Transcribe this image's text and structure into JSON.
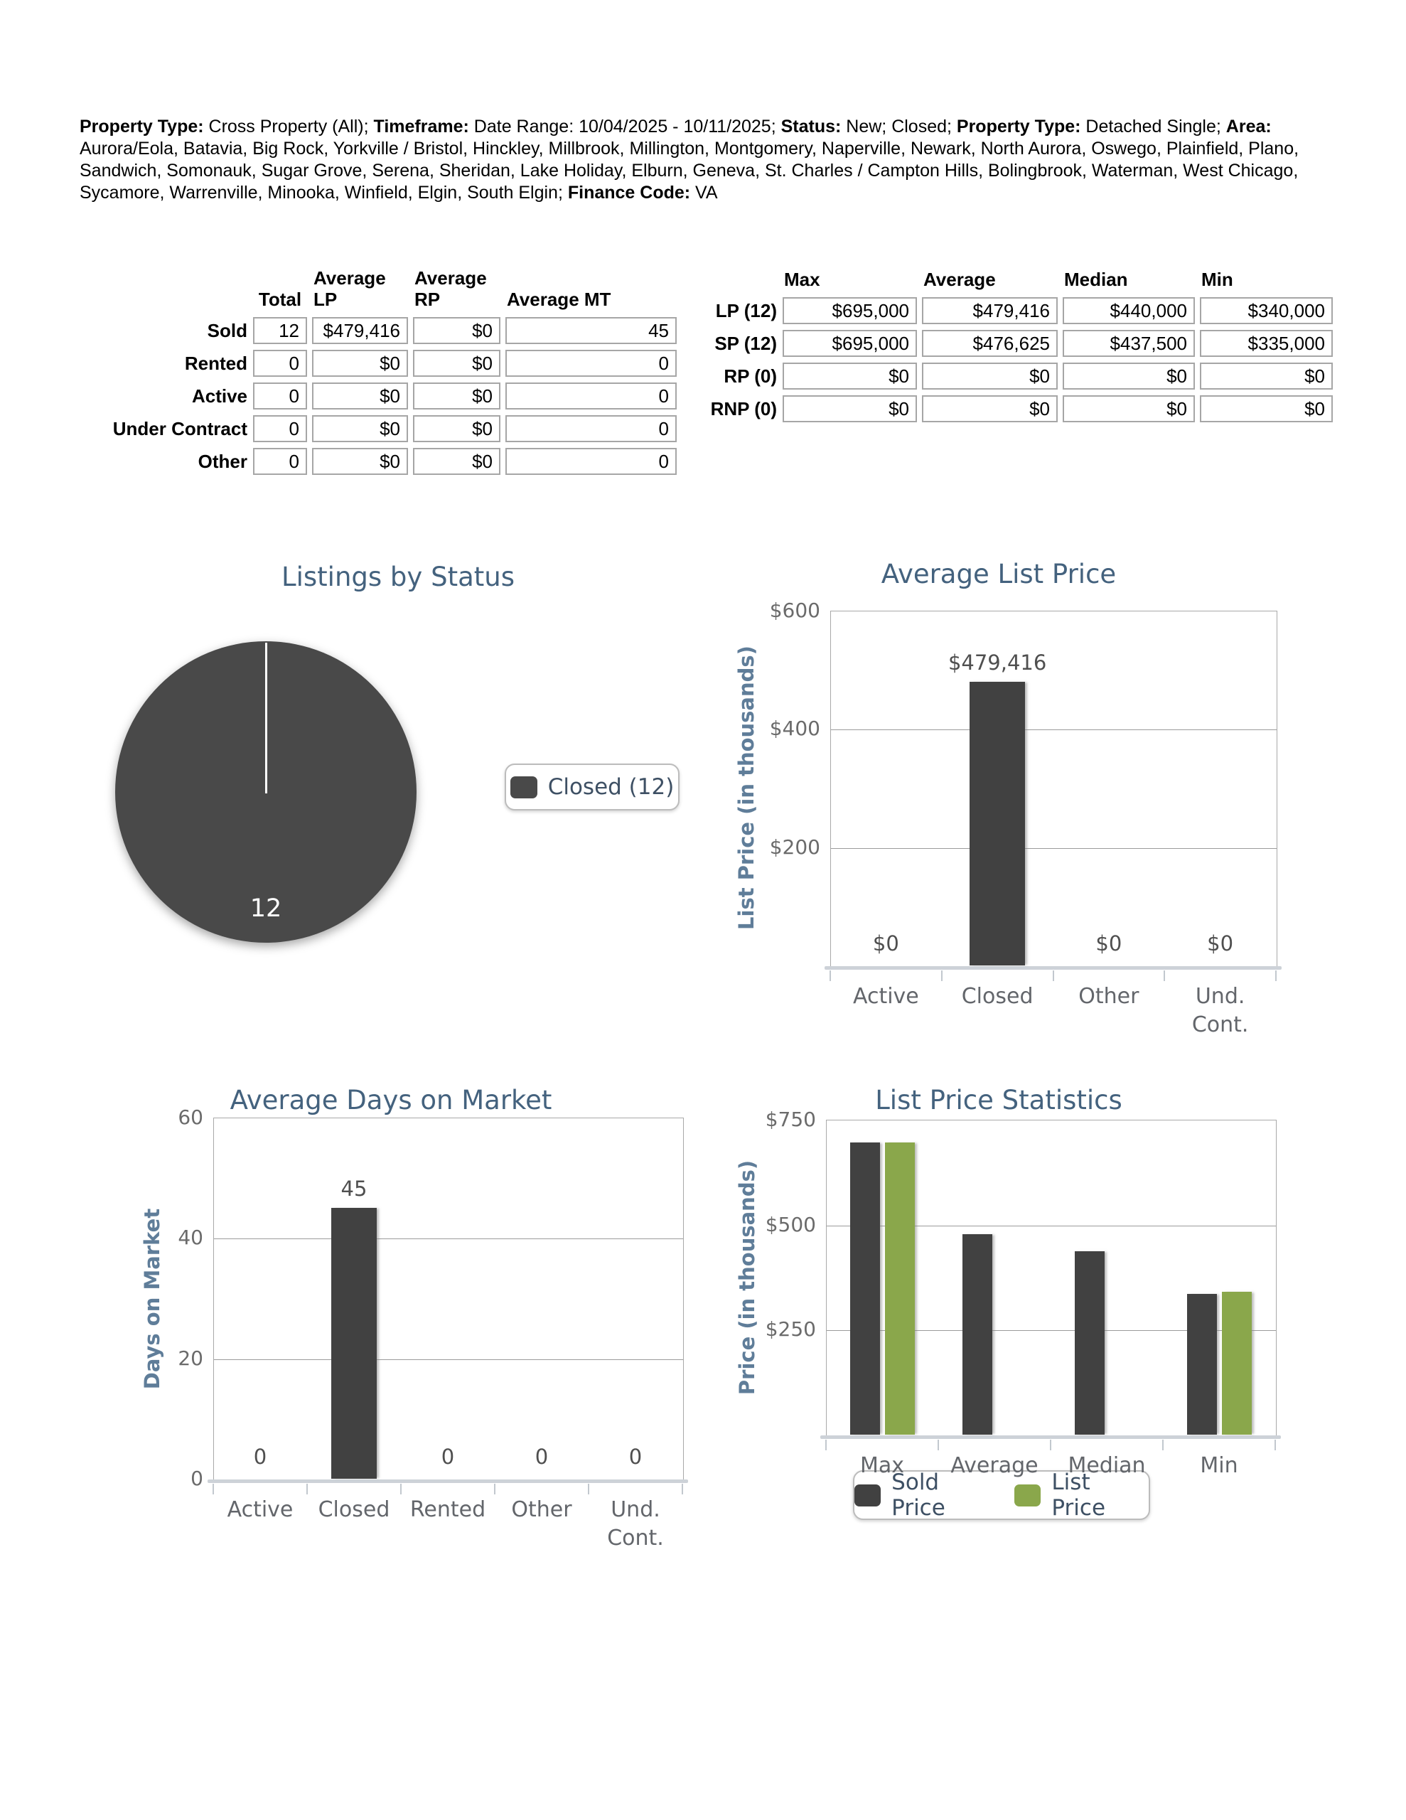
{
  "header": {
    "segments": [
      {
        "b": "Property Type:",
        "t": " Cross Property (All); "
      },
      {
        "b": "Timeframe:",
        "t": " Date Range: 10/04/2025 - 10/11/2025; "
      },
      {
        "b": "Status:",
        "t": " New; Closed; "
      },
      {
        "b": "Property Type:",
        "t": " Detached Single; "
      },
      {
        "b": "Area:",
        "t": " Aurora/Eola, Batavia, Big Rock, Yorkville / Bristol, Hinckley, Millbrook, Millington, Montgomery, Naperville, Newark, North Aurora, Oswego, Plainfield, Plano, Sandwich, Somonauk, Sugar Grove, Serena, Sheridan, Lake Holiday, Elburn, Geneva, St. Charles / Campton Hills, Bolingbrook, Waterman, West Chicago, Sycamore, Warrenville, Minooka, Winfield, Elgin, South Elgin; "
      },
      {
        "b": "Finance Code:",
        "t": " VA"
      }
    ]
  },
  "status_table": {
    "headers": [
      "Total",
      "Average LP",
      "Average RP",
      "Average MT"
    ],
    "rows": [
      {
        "label": "Sold",
        "values": [
          "12",
          "$479,416",
          "$0",
          "45"
        ]
      },
      {
        "label": "Rented",
        "values": [
          "0",
          "$0",
          "$0",
          "0"
        ]
      },
      {
        "label": "Active",
        "values": [
          "0",
          "$0",
          "$0",
          "0"
        ]
      },
      {
        "label": "Under Contract",
        "values": [
          "0",
          "$0",
          "$0",
          "0"
        ]
      },
      {
        "label": "Other",
        "values": [
          "0",
          "$0",
          "$0",
          "0"
        ]
      }
    ]
  },
  "price_table": {
    "headers": [
      "Max",
      "Average",
      "Median",
      "Min"
    ],
    "rows": [
      {
        "label": "LP (12)",
        "values": [
          "$695,000",
          "$479,416",
          "$440,000",
          "$340,000"
        ]
      },
      {
        "label": "SP (12)",
        "values": [
          "$695,000",
          "$476,625",
          "$437,500",
          "$335,000"
        ]
      },
      {
        "label": "RP (0)",
        "values": [
          "$0",
          "$0",
          "$0",
          "$0"
        ]
      },
      {
        "label": "RNP (0)",
        "values": [
          "$0",
          "$0",
          "$0",
          "$0"
        ]
      }
    ]
  },
  "chart_data": [
    {
      "type": "pie",
      "title": "Listings by Status",
      "slices": [
        {
          "label": "Closed",
          "value": 12,
          "color": "#494949"
        }
      ],
      "legend": [
        "Closed (12)"
      ],
      "data_label": "12"
    },
    {
      "type": "bar",
      "title": "Average List Price",
      "ylabel": "List Price (in thousands)",
      "categories": [
        "Active",
        "Closed",
        "Other",
        "Und.\nCont."
      ],
      "values": [
        0,
        479416,
        0,
        0
      ],
      "value_labels": [
        "$0",
        "$479,416",
        "$0",
        "$0"
      ],
      "yticks": [
        {
          "label": "$600",
          "value": 600000
        },
        {
          "label": "$400",
          "value": 400000
        },
        {
          "label": "$200",
          "value": 200000
        }
      ],
      "ylim": [
        0,
        600000
      ],
      "bar_color": "#414141",
      "grid": true,
      "legend_position": "none"
    },
    {
      "type": "bar",
      "title": "Average Days on Market",
      "ylabel": "Days on Market",
      "categories": [
        "Active",
        "Closed",
        "Rented",
        "Other",
        "Und.\nCont."
      ],
      "values": [
        0,
        45,
        0,
        0,
        0
      ],
      "value_labels": [
        "0",
        "45",
        "0",
        "0",
        "0"
      ],
      "yticks": [
        {
          "label": "60",
          "value": 60
        },
        {
          "label": "40",
          "value": 40
        },
        {
          "label": "20",
          "value": 20
        },
        {
          "label": "0",
          "value": 0
        }
      ],
      "ylim": [
        0,
        60
      ],
      "bar_color": "#414141",
      "grid": true,
      "legend_position": "none"
    },
    {
      "type": "grouped_bar",
      "title": "List Price Statistics",
      "ylabel": "Price (in thousands)",
      "categories": [
        "Max",
        "Average",
        "Median",
        "Min"
      ],
      "series": [
        {
          "name": "Sold Price",
          "color": "#414141",
          "values": [
            695000,
            476625,
            437500,
            335000
          ]
        },
        {
          "name": "List Price",
          "color": "#8aa74b",
          "values": [
            695000,
            null,
            null,
            340000
          ]
        }
      ],
      "yticks": [
        {
          "label": "$750",
          "value": 750000
        },
        {
          "label": "$500",
          "value": 500000
        },
        {
          "label": "$250",
          "value": 250000
        }
      ],
      "ylim": [
        0,
        750000
      ],
      "legend": [
        "Sold Price",
        "List Price"
      ],
      "grid": true,
      "legend_position": "bottom"
    }
  ],
  "colors": {
    "chart_title": "#44627e",
    "axis_title": "#5f7d99",
    "tick_label": "#6b6b6b",
    "category_label": "#63666b",
    "value_label": "#4f4f4f",
    "bar_dark": "#414141",
    "bar_green": "#8aa74b",
    "pie_slice": "#494949",
    "legend_text": "#3e5064",
    "plot_border": "#a9a9a9",
    "baseline_band": "#cdd2d8"
  }
}
